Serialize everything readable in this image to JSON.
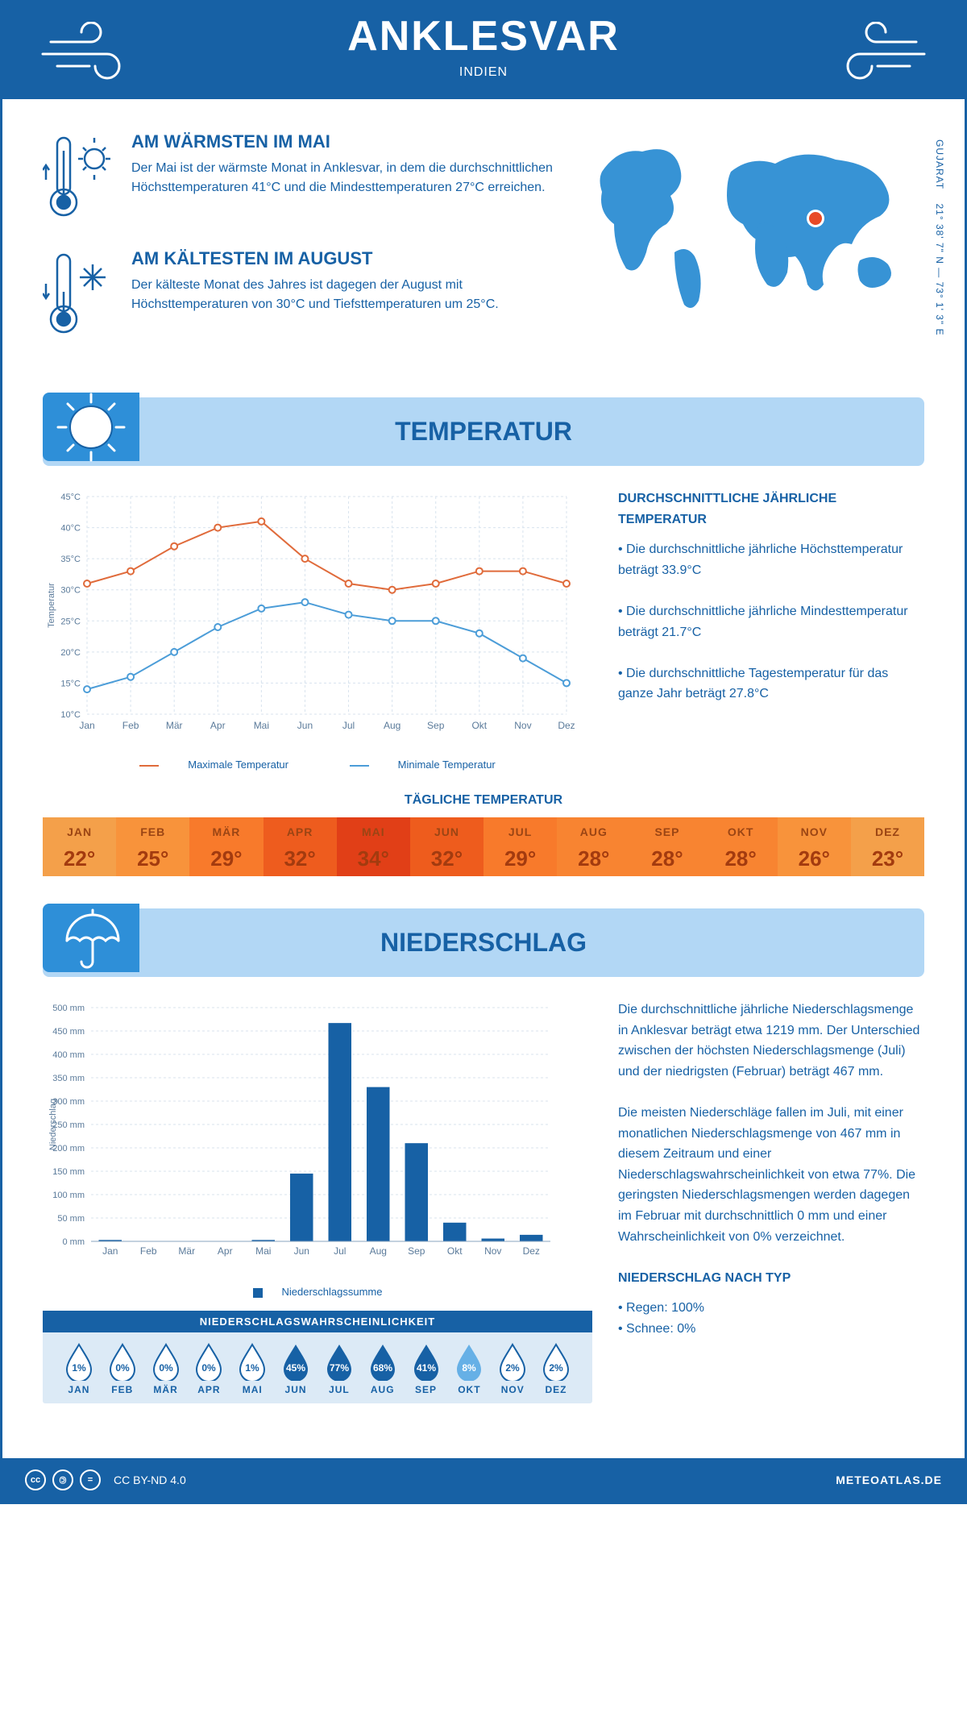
{
  "header": {
    "title": "ANKLESVAR",
    "subtitle": "INDIEN"
  },
  "coords": {
    "lat": "21° 38' 7\" N",
    "lon": "73° 1' 3\" E",
    "region": "GUJARAT"
  },
  "facts": {
    "warm": {
      "title": "AM WÄRMSTEN IM MAI",
      "text": "Der Mai ist der wärmste Monat in Anklesvar, in dem die durchschnittlichen Höchsttemperaturen 41°C und die Mindesttemperaturen 27°C erreichen."
    },
    "cold": {
      "title": "AM KÄLTESTEN IM AUGUST",
      "text": "Der kälteste Monat des Jahres ist dagegen der August mit Höchsttemperaturen von 30°C und Tiefsttemperaturen um 25°C."
    }
  },
  "sections": {
    "temp": "TEMPERATUR",
    "rain": "NIEDERSCHLAG"
  },
  "months": [
    "Jan",
    "Feb",
    "Mär",
    "Apr",
    "Mai",
    "Jun",
    "Jul",
    "Aug",
    "Sep",
    "Okt",
    "Nov",
    "Dez"
  ],
  "months_upper": [
    "JAN",
    "FEB",
    "MÄR",
    "APR",
    "MAI",
    "JUN",
    "JUL",
    "AUG",
    "SEP",
    "OKT",
    "NOV",
    "DEZ"
  ],
  "temp_chart": {
    "y_label": "Temperatur",
    "y_min": 10,
    "y_max": 45,
    "y_step": 5,
    "max_series": [
      31,
      33,
      37,
      40,
      41,
      35,
      31,
      30,
      31,
      33,
      33,
      31
    ],
    "min_series": [
      14,
      16,
      20,
      24,
      27,
      28,
      26,
      25,
      25,
      23,
      19,
      15
    ],
    "max_color": "#e06b3b",
    "min_color": "#4c9dd8",
    "grid_color": "#d8e3ee",
    "legend_max": "Maximale Temperatur",
    "legend_min": "Minimale Temperatur"
  },
  "temp_side": {
    "title": "DURCHSCHNITTLICHE JÄHRLICHE TEMPERATUR",
    "bullets": [
      "Die durchschnittliche jährliche Höchsttemperatur beträgt 33.9°C",
      "Die durchschnittliche jährliche Mindesttemperatur beträgt 21.7°C",
      "Die durchschnittliche Tagestemperatur für das ganze Jahr beträgt 27.8°C"
    ]
  },
  "daily_temp": {
    "title": "TÄGLICHE TEMPERATUR",
    "values": [
      "22°",
      "25°",
      "29°",
      "32°",
      "34°",
      "32°",
      "29°",
      "28°",
      "28°",
      "28°",
      "26°",
      "23°"
    ],
    "colors": [
      "#f4a04a",
      "#f8933b",
      "#f87a2b",
      "#ee5c1e",
      "#e13f17",
      "#ee5c1d",
      "#f87a2b",
      "#f88431",
      "#f88431",
      "#f88431",
      "#f8933b",
      "#f4a04a"
    ]
  },
  "rain_chart": {
    "y_label": "Niederschlag",
    "y_min": 0,
    "y_max": 500,
    "y_step": 50,
    "values": [
      3,
      0,
      0,
      0,
      3,
      145,
      467,
      330,
      210,
      40,
      6,
      14
    ],
    "bar_color": "#1761a5",
    "grid_color": "#d8e3ee",
    "legend": "Niederschlagssumme"
  },
  "rain_text": {
    "p1": "Die durchschnittliche jährliche Niederschlagsmenge in Anklesvar beträgt etwa 1219 mm. Der Unterschied zwischen der höchsten Niederschlagsmenge (Juli) und der niedrigsten (Februar) beträgt 467 mm.",
    "p2": "Die meisten Niederschläge fallen im Juli, mit einer monatlichen Niederschlagsmenge von 467 mm in diesem Zeitraum und einer Niederschlagswahrscheinlichkeit von etwa 77%. Die geringsten Niederschlagsmengen werden dagegen im Februar mit durchschnittlich 0 mm und einer Wahrscheinlichkeit von 0% verzeichnet.",
    "type_title": "NIEDERSCHLAG NACH TYP",
    "type_bullets": [
      "Regen: 100%",
      "Schnee: 0%"
    ]
  },
  "prob": {
    "title": "NIEDERSCHLAGSWAHRSCHEINLICHKEIT",
    "values": [
      "1%",
      "0%",
      "0%",
      "0%",
      "1%",
      "45%",
      "77%",
      "68%",
      "41%",
      "8%",
      "2%",
      "2%"
    ],
    "fills": [
      "none",
      "none",
      "none",
      "none",
      "none",
      "#1761a5",
      "#1761a5",
      "#1761a5",
      "#1761a5",
      "#66b0e6",
      "none",
      "none"
    ]
  },
  "footer": {
    "license": "CC BY-ND 4.0",
    "site": "METEOATLAS.DE"
  },
  "palette": {
    "primary": "#1761a5",
    "banner": "#b2d7f5",
    "banner_dark": "#2e8fd8"
  }
}
